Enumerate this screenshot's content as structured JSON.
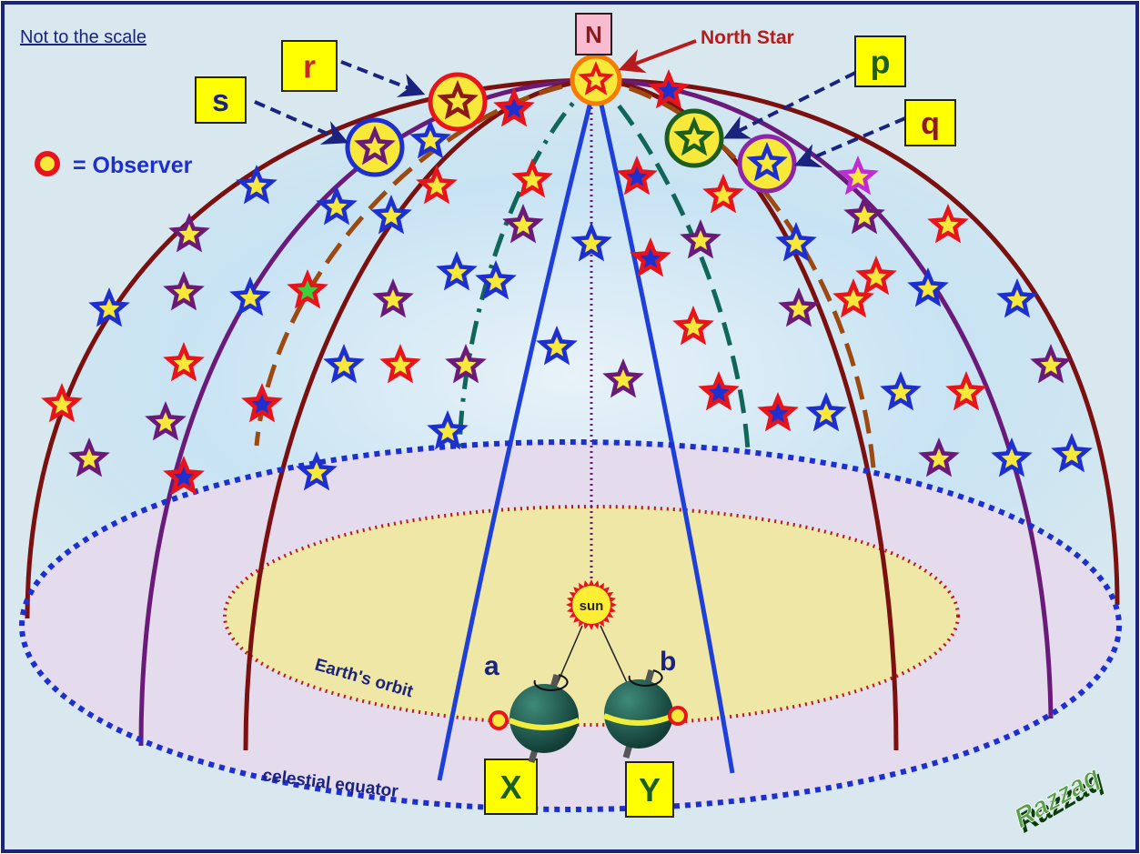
{
  "header": {
    "note": "Not to the scale"
  },
  "legend": {
    "observer": "= Observer"
  },
  "labels": {
    "north": "N",
    "north_star": "North Star",
    "r": "r",
    "s": "s",
    "p": "p",
    "q": "q",
    "x": "X",
    "y": "Y",
    "a": "a",
    "b": "b",
    "sun": "sun"
  },
  "orbit": "Earth's orbit",
  "equator": "celestial equator",
  "credit": "Razzaq"
}
